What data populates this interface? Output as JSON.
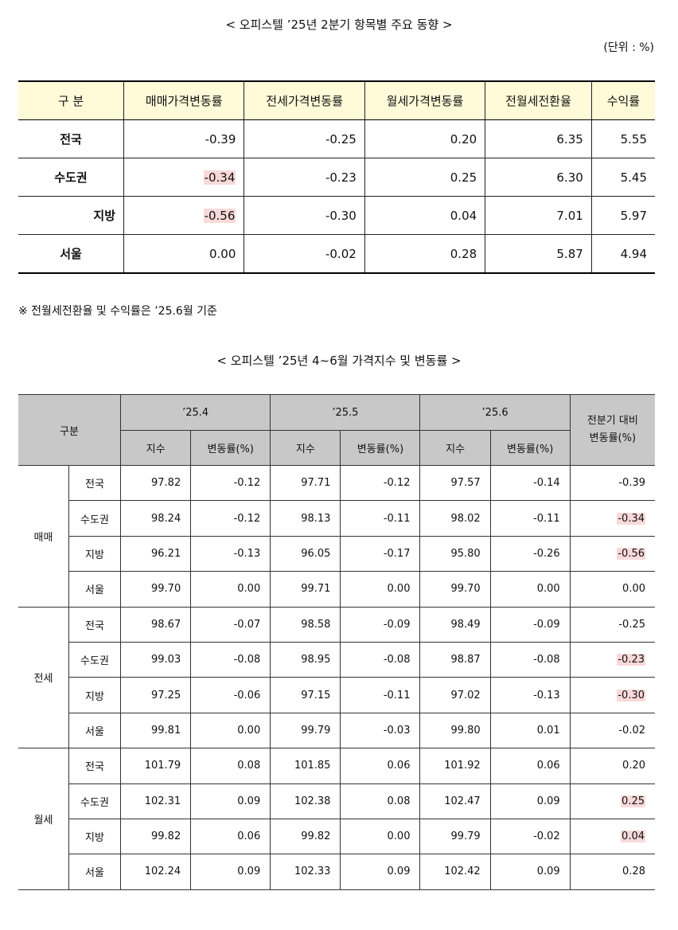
{
  "table1": {
    "title": "< 오피스텔 ’25년 2분기 항목별 주요 동향 >",
    "unit": "(단위 : %)",
    "headers": [
      "구 분",
      "매매가격변동률",
      "전세가격변동률",
      "월세가격변동률",
      "전월세전환율",
      "수익률"
    ],
    "rows": [
      {
        "label": "전국",
        "values": [
          "-0.39",
          "-0.25",
          "0.20",
          "6.35",
          "5.55"
        ]
      },
      {
        "label": "수도권",
        "values": [
          "-0.34",
          "-0.23",
          "0.25",
          "6.30",
          "5.45"
        ]
      },
      {
        "label": "지방",
        "values": [
          "-0.56",
          "-0.30",
          "0.04",
          "7.01",
          "5.97"
        ]
      },
      {
        "label": "서울",
        "values": [
          "0.00",
          "-0.02",
          "0.28",
          "5.87",
          "4.94"
        ]
      }
    ]
  },
  "note": "※ 전월세전환율 및 수익률은 ’25.6월 기준",
  "table2": {
    "title": "< 오피스텔 ’25년 4~6월 가격지수 및 변동률 >",
    "header_corner": "구분",
    "months": [
      "’25.4",
      "’25.5",
      "’25.6"
    ],
    "last_col": "전분기 대비\n변동률(%)",
    "sub_index": "지수",
    "sub_change": "변동률(%)",
    "groups": [
      {
        "name": "매매",
        "rows": [
          {
            "label": "전국",
            "v": [
              "97.82",
              "-0.12",
              "97.71",
              "-0.12",
              "97.57",
              "-0.14",
              "-0.39"
            ]
          },
          {
            "label": "수도권",
            "v": [
              "98.24",
              "-0.12",
              "98.13",
              "-0.11",
              "98.02",
              "-0.11",
              "-0.34"
            ]
          },
          {
            "label": "지방",
            "v": [
              "96.21",
              "-0.13",
              "96.05",
              "-0.17",
              "95.80",
              "-0.26",
              "-0.56"
            ]
          },
          {
            "label": "서울",
            "v": [
              "99.70",
              "0.00",
              "99.71",
              "0.00",
              "99.70",
              "0.00",
              "0.00"
            ]
          }
        ]
      },
      {
        "name": "전세",
        "rows": [
          {
            "label": "전국",
            "v": [
              "98.67",
              "-0.07",
              "98.58",
              "-0.09",
              "98.49",
              "-0.09",
              "-0.25"
            ]
          },
          {
            "label": "수도권",
            "v": [
              "99.03",
              "-0.08",
              "98.95",
              "-0.08",
              "98.87",
              "-0.08",
              "-0.23"
            ]
          },
          {
            "label": "지방",
            "v": [
              "97.25",
              "-0.06",
              "97.15",
              "-0.11",
              "97.02",
              "-0.13",
              "-0.30"
            ]
          },
          {
            "label": "서울",
            "v": [
              "99.81",
              "0.00",
              "99.79",
              "-0.03",
              "99.80",
              "0.01",
              "-0.02"
            ]
          }
        ]
      },
      {
        "name": "월세",
        "rows": [
          {
            "label": "전국",
            "v": [
              "101.79",
              "0.08",
              "101.85",
              "0.06",
              "101.92",
              "0.06",
              "0.20"
            ]
          },
          {
            "label": "수도권",
            "v": [
              "102.31",
              "0.09",
              "102.38",
              "0.08",
              "102.47",
              "0.09",
              "0.25"
            ]
          },
          {
            "label": "지방",
            "v": [
              "99.82",
              "0.06",
              "99.82",
              "0.00",
              "99.79",
              "-0.02",
              "0.04"
            ]
          },
          {
            "label": "서울",
            "v": [
              "102.24",
              "0.09",
              "102.33",
              "0.09",
              "102.42",
              "0.09",
              "0.28"
            ]
          }
        ]
      }
    ]
  },
  "colors": {
    "header1_bg": "#fffad8",
    "header2_bg": "#c8c8c8",
    "highlight": "#f9d9d9"
  }
}
